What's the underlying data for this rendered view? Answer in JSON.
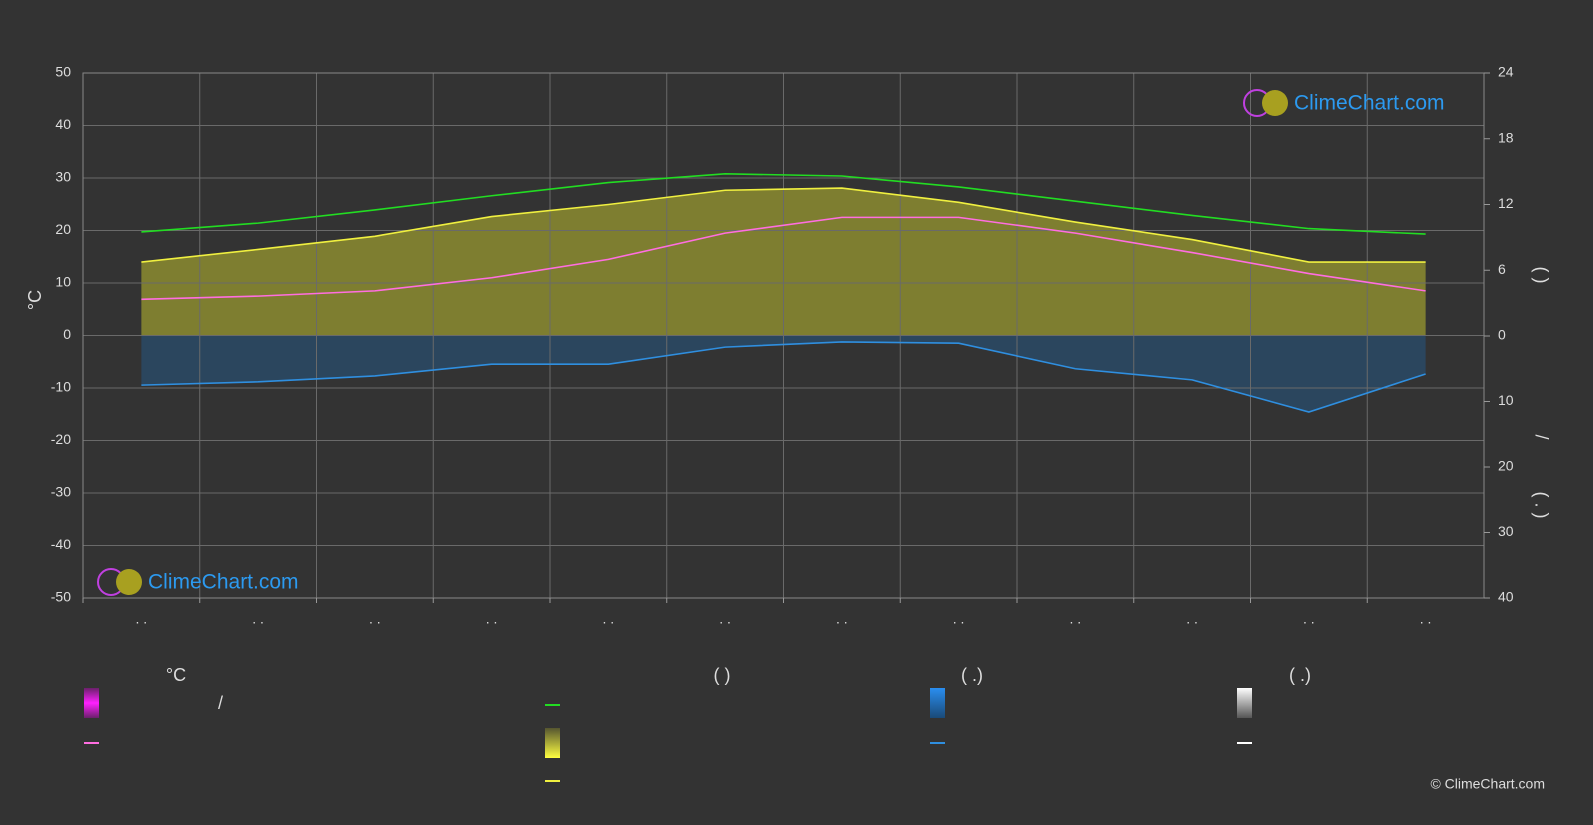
{
  "chart_data": {
    "type": "line",
    "categories": [
      ". .",
      ". .",
      ". .",
      ". .",
      ". .",
      ". .",
      ". .",
      ". .",
      ". .",
      ". .",
      ". .",
      ". ."
    ],
    "ylabel": "°C",
    "ylim": [
      -50,
      50
    ],
    "yticks": [
      50,
      40,
      30,
      20,
      10,
      0,
      -10,
      -20,
      -30,
      -40,
      -50
    ],
    "y2lim": [
      0,
      24
    ],
    "y2ticks": [
      0,
      6,
      12,
      18,
      24
    ],
    "y3lim": [
      0,
      40
    ],
    "y3ticks": [
      10,
      20,
      30,
      40
    ],
    "right_labels": [
      "(   )",
      "/",
      "( . )"
    ],
    "grid": true,
    "series": [
      {
        "color": "#ff6ee0",
        "axis": "y",
        "values": [
          6.9,
          7.5,
          8.5,
          11,
          14.5,
          19.5,
          22.5,
          22.5,
          19.5,
          15.8,
          11.8,
          8.5
        ]
      },
      {
        "color": "#22dd22",
        "axis": "y2",
        "values": [
          9.5,
          10.3,
          11.5,
          12.8,
          14.0,
          14.8,
          14.6,
          13.6,
          12.3,
          11.0,
          9.8,
          9.3
        ]
      },
      {
        "color": "#f0f040",
        "axis": "y2",
        "fill": "#8c8c30",
        "values": [
          6.75,
          7.9,
          9.1,
          10.9,
          12.0,
          13.3,
          13.5,
          12.2,
          10.4,
          8.8,
          6.75,
          6.75
        ]
      },
      {
        "color": "#2f8fe0",
        "axis": "y3",
        "fill": "#2a4a66",
        "values": [
          7.5,
          7.0,
          6.1,
          4.3,
          4.3,
          1.7,
          0.9,
          1.1,
          5.0,
          6.7,
          11.6,
          5.8
        ]
      }
    ],
    "legend": {
      "headers": [
        "°C",
        "(          )",
        "(   .)",
        "(   .)"
      ],
      "texts": [
        "/"
      ]
    },
    "watermark": "ClimeChart.com",
    "copyright": "© ClimeChart.com"
  }
}
